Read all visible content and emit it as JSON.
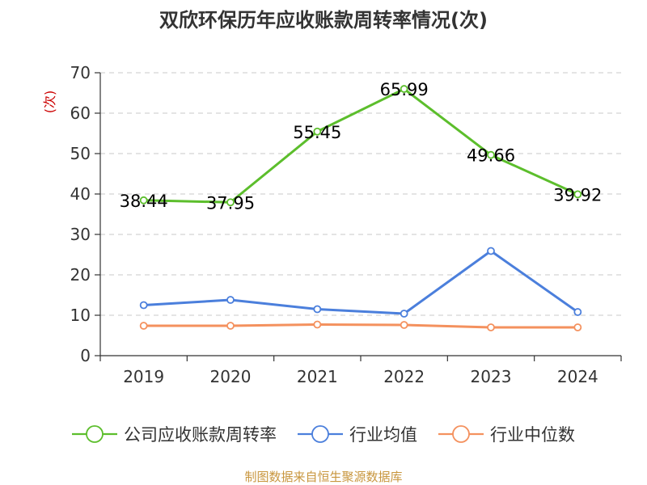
{
  "chart_data": {
    "type": "line",
    "title": "双欣环保历年应收账款周转率情况(次)",
    "ylabel": "(次)",
    "xlabel": "",
    "categories": [
      "2019",
      "2020",
      "2021",
      "2022",
      "2023",
      "2024"
    ],
    "ylim": [
      0,
      70
    ],
    "yticks": [
      0,
      10,
      20,
      30,
      40,
      50,
      60,
      70
    ],
    "grid": true,
    "legend_position": "bottom",
    "series": [
      {
        "name": "公司应收账款周转率",
        "color": "#5cbe2c",
        "values": [
          38.44,
          37.95,
          55.45,
          65.99,
          49.66,
          39.92
        ],
        "labels": [
          "38.44",
          "37.95",
          "55.45",
          "65.99",
          "49.66",
          "39.92"
        ],
        "show_labels": true
      },
      {
        "name": "行业均值",
        "color": "#4b7fdc",
        "values": [
          12.5,
          13.8,
          11.5,
          10.4,
          25.9,
          10.8
        ],
        "show_labels": false
      },
      {
        "name": "行业中位数",
        "color": "#f4915e",
        "values": [
          7.4,
          7.4,
          7.7,
          7.6,
          7.0,
          7.0
        ],
        "show_labels": false
      }
    ]
  },
  "source": "制图数据来自恒生聚源数据库"
}
